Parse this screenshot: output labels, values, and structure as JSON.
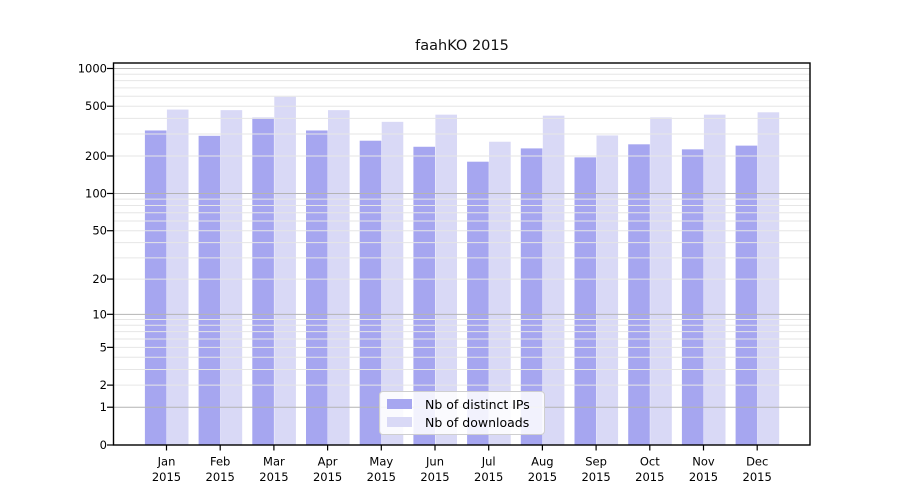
{
  "chart_data": {
    "type": "bar",
    "title": "faahKO 2015",
    "categories": [
      "Jan 2015",
      "Feb 2015",
      "Mar 2015",
      "Apr 2015",
      "May 2015",
      "Jun 2015",
      "Jul 2015",
      "Aug 2015",
      "Sep 2015",
      "Oct 2015",
      "Nov 2015",
      "Dec 2015"
    ],
    "series": [
      {
        "name": "Nb of distinct IPs",
        "color": "#a6a6f0",
        "values": [
          320,
          290,
          405,
          320,
          265,
          237,
          180,
          230,
          195,
          248,
          226,
          242
        ]
      },
      {
        "name": "Nb of downloads",
        "color": "#d9d9f6",
        "values": [
          470,
          465,
          595,
          465,
          375,
          428,
          260,
          420,
          292,
          407,
          428,
          447
        ]
      }
    ],
    "yscale": "log1p",
    "ylim": [
      0,
      1106
    ],
    "yticks": [
      1000,
      500,
      200,
      100,
      50,
      20,
      10,
      5,
      2,
      1,
      0
    ],
    "grid": {
      "major_at": [
        1,
        10,
        100,
        1000
      ],
      "minor_at": [
        2,
        3,
        4,
        5,
        6,
        7,
        8,
        9,
        20,
        30,
        40,
        50,
        60,
        70,
        80,
        90,
        200,
        300,
        400,
        500,
        600,
        700,
        800,
        900
      ],
      "major_color": "#b4b4b4",
      "minor_color": "#e6e6e6"
    },
    "legend_position": "lower center",
    "xlabel": "",
    "ylabel": "",
    "background": "#ffffff",
    "frame_color": "#000000"
  }
}
